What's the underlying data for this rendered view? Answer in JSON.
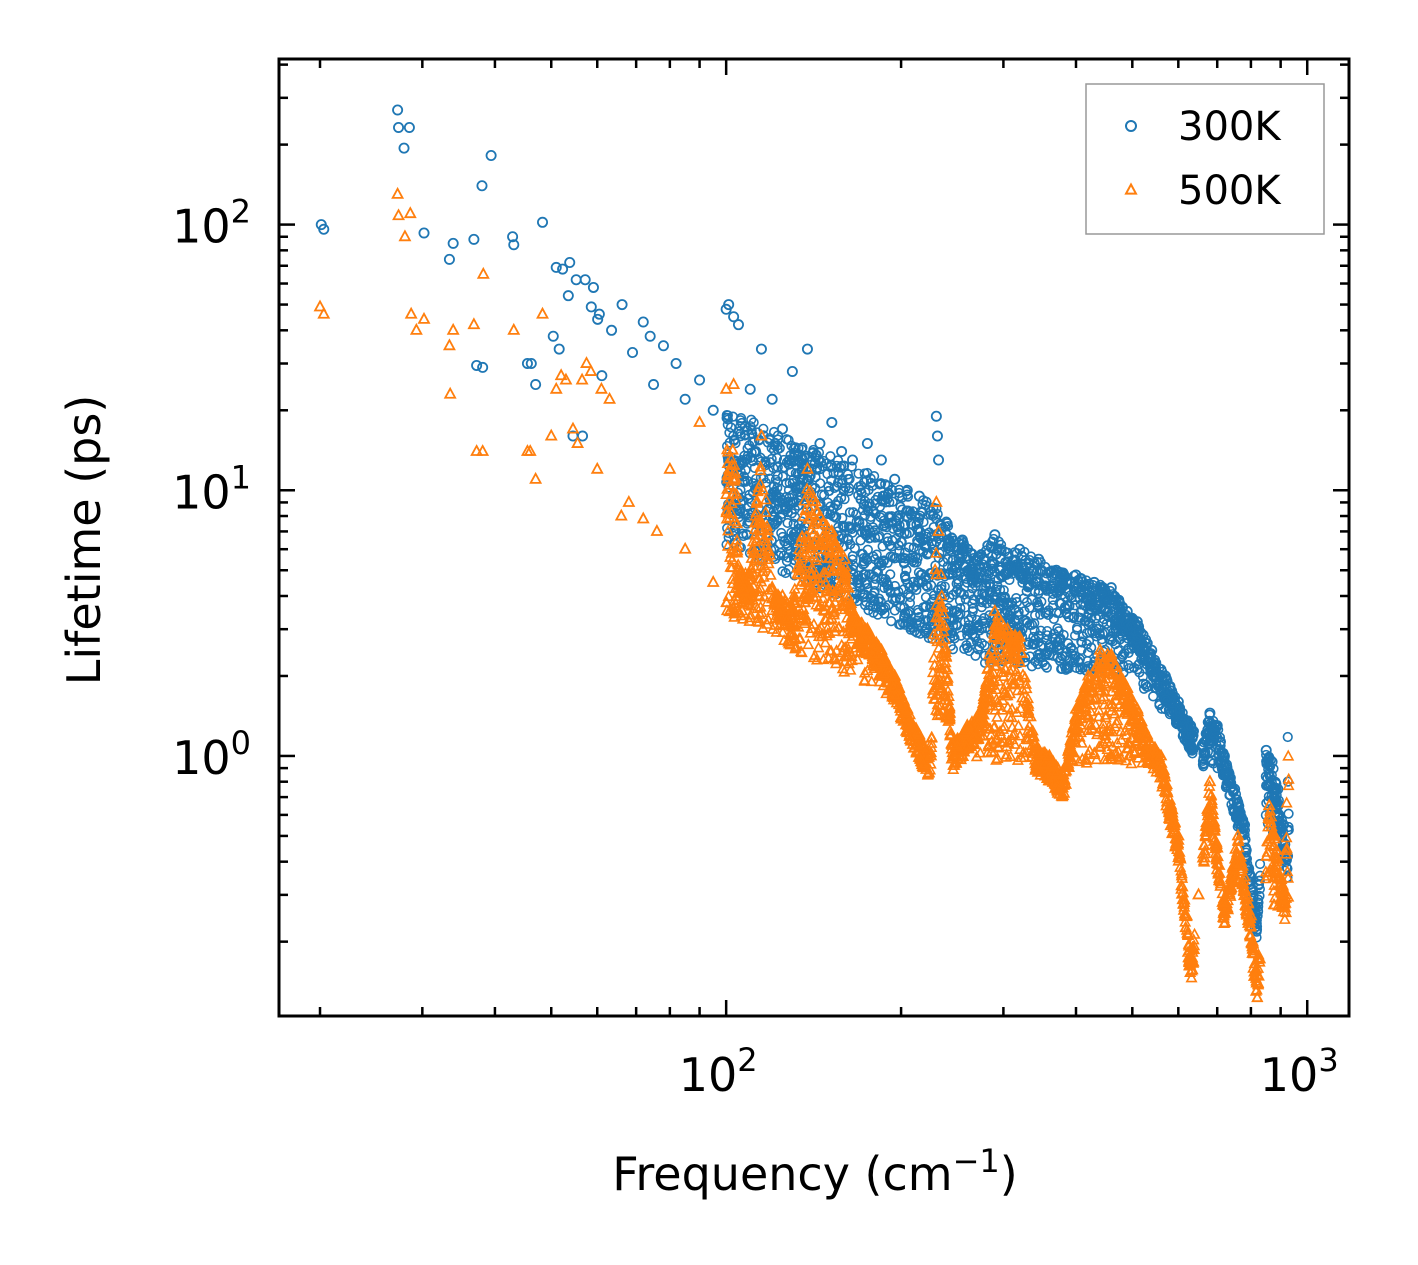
{
  "chart_data": {
    "type": "scatter",
    "xscale": "log",
    "yscale": "log",
    "xlim": [
      17,
      1180
    ],
    "ylim": [
      0.105,
      420
    ],
    "xlabel": "Frequency (cm",
    "xlabel_sup": "−1",
    "xlabel_close": ")",
    "ylabel": "Lifetime (ps)",
    "x_ticks": [
      {
        "value": 100,
        "base": "10",
        "exp": "2"
      },
      {
        "value": 1000,
        "base": "10",
        "exp": "3"
      }
    ],
    "y_ticks": [
      {
        "value": 1,
        "base": "10",
        "exp": "0"
      },
      {
        "value": 10,
        "base": "10",
        "exp": "1"
      },
      {
        "value": 100,
        "base": "10",
        "exp": "2"
      }
    ],
    "legend_position": "top-right",
    "series": [
      {
        "name": "300K",
        "marker": "circle",
        "color": "#1f77b4",
        "points": [
          [
            20.1,
            100
          ],
          [
            20.3,
            96
          ],
          [
            27.2,
            270
          ],
          [
            27.3,
            232
          ],
          [
            27.9,
            194
          ],
          [
            28.5,
            232
          ],
          [
            30.2,
            93
          ],
          [
            33.4,
            74
          ],
          [
            33.9,
            85
          ],
          [
            36.8,
            88
          ],
          [
            37.2,
            29.5
          ],
          [
            38.0,
            140
          ],
          [
            38.1,
            29.0
          ],
          [
            39.4,
            182
          ],
          [
            42.9,
            90
          ],
          [
            43.1,
            84
          ],
          [
            45.5,
            30
          ],
          [
            46.2,
            30
          ],
          [
            47.0,
            25
          ],
          [
            48.3,
            102
          ],
          [
            50.4,
            38
          ],
          [
            51.0,
            69
          ],
          [
            51.6,
            34
          ],
          [
            52.3,
            68
          ],
          [
            53.5,
            54
          ],
          [
            53.8,
            72
          ],
          [
            54.5,
            16
          ],
          [
            55.2,
            62
          ],
          [
            56.6,
            16
          ],
          [
            57.2,
            62
          ],
          [
            58.6,
            49
          ],
          [
            59.1,
            58
          ],
          [
            60.1,
            44
          ],
          [
            60.5,
            46
          ],
          [
            61.1,
            27
          ],
          [
            63.5,
            40
          ],
          [
            66.2,
            50
          ],
          [
            69.0,
            33
          ],
          [
            72.0,
            43
          ],
          [
            74.0,
            38
          ],
          [
            75.0,
            25
          ],
          [
            78.0,
            35
          ],
          [
            82.0,
            30
          ],
          [
            85.0,
            22
          ],
          [
            90.0,
            26
          ],
          [
            95.0,
            20
          ],
          [
            100,
            48
          ],
          [
            101,
            50
          ],
          [
            103,
            45
          ],
          [
            105,
            42
          ],
          [
            110,
            24
          ],
          [
            115,
            34
          ],
          [
            120,
            22
          ],
          [
            125,
            17
          ],
          [
            130,
            28
          ],
          [
            138,
            34
          ],
          [
            145,
            15
          ],
          [
            152,
            18
          ],
          [
            158,
            14
          ],
          [
            165,
            13
          ],
          [
            175,
            15
          ],
          [
            185,
            13
          ],
          [
            195,
            11
          ],
          [
            205,
            10
          ],
          [
            215,
            9.5
          ],
          [
            230,
            19
          ],
          [
            231,
            16
          ],
          [
            232,
            13
          ],
          [
            240,
            7.5
          ],
          [
            255,
            6.5
          ],
          [
            270,
            5.5
          ],
          [
            290,
            6.8
          ],
          [
            305,
            5.8
          ],
          [
            320,
            6.0
          ],
          [
            345,
            5.5
          ],
          [
            370,
            5.0
          ],
          [
            400,
            4.8
          ],
          [
            430,
            4.5
          ],
          [
            460,
            4.3
          ],
          [
            490,
            3.5
          ],
          [
            510,
            3.2
          ],
          [
            540,
            2.5
          ],
          [
            570,
            2.0
          ],
          [
            600,
            1.6
          ],
          [
            630,
            1.3
          ],
          [
            660,
            1.1
          ],
          [
            680,
            1.45
          ],
          [
            700,
            1.3
          ],
          [
            720,
            1.0
          ],
          [
            750,
            0.75
          ],
          [
            780,
            0.55
          ],
          [
            800,
            0.35
          ],
          [
            820,
            0.25
          ],
          [
            850,
            1.05
          ],
          [
            870,
            0.95
          ],
          [
            890,
            0.75
          ],
          [
            910,
            0.55
          ],
          [
            925,
            0.42
          ]
        ]
      },
      {
        "name": "500K",
        "marker": "triangle",
        "color": "#ff7f0e",
        "points": [
          [
            20.0,
            49
          ],
          [
            20.3,
            46
          ],
          [
            27.2,
            130
          ],
          [
            27.3,
            108
          ],
          [
            28.0,
            90
          ],
          [
            28.6,
            110
          ],
          [
            28.7,
            46
          ],
          [
            29.3,
            40
          ],
          [
            30.2,
            44
          ],
          [
            33.4,
            35
          ],
          [
            33.5,
            23
          ],
          [
            33.9,
            40
          ],
          [
            36.8,
            42
          ],
          [
            37.2,
            14
          ],
          [
            38.1,
            14
          ],
          [
            38.2,
            65
          ],
          [
            43.1,
            40
          ],
          [
            45.5,
            14
          ],
          [
            46.0,
            14
          ],
          [
            47.0,
            11
          ],
          [
            48.3,
            46
          ],
          [
            50.0,
            16
          ],
          [
            51.0,
            24
          ],
          [
            52.0,
            27
          ],
          [
            53.0,
            26
          ],
          [
            54.5,
            17
          ],
          [
            55.5,
            15
          ],
          [
            56.5,
            26
          ],
          [
            57.5,
            30
          ],
          [
            58.5,
            28
          ],
          [
            60.0,
            12
          ],
          [
            61.0,
            24
          ],
          [
            63.0,
            22
          ],
          [
            66.0,
            8.0
          ],
          [
            68.0,
            9.0
          ],
          [
            72.0,
            7.8
          ],
          [
            76.0,
            7.0
          ],
          [
            80.0,
            12
          ],
          [
            85.0,
            6.0
          ],
          [
            90.0,
            18
          ],
          [
            95.0,
            4.5
          ],
          [
            100,
            24
          ],
          [
            103,
            25
          ],
          [
            105,
            5
          ],
          [
            110,
            4.8
          ],
          [
            115,
            16
          ],
          [
            120,
            4.3
          ],
          [
            125,
            4.0
          ],
          [
            130,
            3.5
          ],
          [
            138,
            12
          ],
          [
            145,
            8
          ],
          [
            152,
            7
          ],
          [
            160,
            5.5
          ],
          [
            165,
            3.5
          ],
          [
            175,
            3.0
          ],
          [
            185,
            2.5
          ],
          [
            195,
            2.0
          ],
          [
            205,
            1.5
          ],
          [
            215,
            1.2
          ],
          [
            225,
            1.0
          ],
          [
            230,
            9
          ],
          [
            232,
            7
          ],
          [
            245,
            1.1
          ],
          [
            260,
            1.3
          ],
          [
            275,
            1.5
          ],
          [
            290,
            3.5
          ],
          [
            305,
            3.0
          ],
          [
            320,
            2.8
          ],
          [
            340,
            1.1
          ],
          [
            360,
            1.0
          ],
          [
            380,
            0.85
          ],
          [
            400,
            1.5
          ],
          [
            420,
            2.0
          ],
          [
            440,
            2.5
          ],
          [
            460,
            2.4
          ],
          [
            490,
            1.8
          ],
          [
            510,
            1.5
          ],
          [
            530,
            1.2
          ],
          [
            560,
            1.0
          ],
          [
            600,
            0.5
          ],
          [
            620,
            0.25
          ],
          [
            630,
            0.17
          ],
          [
            650,
            0.3
          ],
          [
            680,
            0.8
          ],
          [
            700,
            0.45
          ],
          [
            720,
            0.28
          ],
          [
            760,
            0.5
          ],
          [
            780,
            0.35
          ],
          [
            800,
            0.25
          ],
          [
            810,
            0.18
          ],
          [
            820,
            0.15
          ],
          [
            860,
            0.65
          ],
          [
            880,
            0.5
          ],
          [
            900,
            0.35
          ],
          [
            920,
            0.3
          ]
        ]
      }
    ],
    "cloud_note": "dense band of points"
  }
}
